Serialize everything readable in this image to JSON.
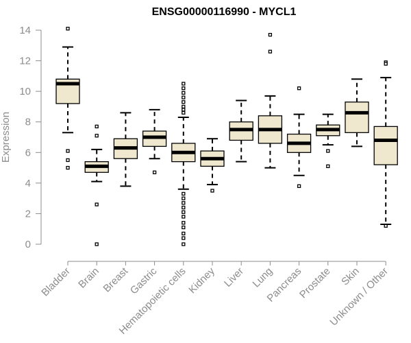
{
  "chart_data": {
    "type": "box",
    "title": "ENSG00000116990 - MYCL1",
    "xlabel": "",
    "ylabel": "Expression",
    "ylim": [
      0,
      14
    ],
    "yticks": [
      0,
      2,
      4,
      6,
      8,
      10,
      12,
      14
    ],
    "grid": false,
    "colors": {
      "box_fill": "#efe8cf",
      "box_stroke": "#000000",
      "axis": "#8c8c8c",
      "text": "#8c8c8c"
    },
    "categories": [
      "Bladder",
      "Brain",
      "Breast",
      "Gastric",
      "Hematopoietic cells",
      "Kidney",
      "Liver",
      "Lung",
      "Pancreas",
      "Prostate",
      "Skin",
      "Unknown / Other"
    ],
    "series": [
      {
        "name": "Bladder",
        "q1": 9.2,
        "median": 10.5,
        "q3": 10.8,
        "whisker_low": 7.3,
        "whisker_high": 12.9,
        "outliers": [
          14.1,
          6.1,
          5.5,
          5.0
        ]
      },
      {
        "name": "Brain",
        "q1": 4.7,
        "median": 5.1,
        "q3": 5.4,
        "whisker_low": 4.1,
        "whisker_high": 6.2,
        "outliers": [
          7.7,
          7.1,
          2.6,
          0.0
        ]
      },
      {
        "name": "Breast",
        "q1": 5.6,
        "median": 6.3,
        "q3": 6.9,
        "whisker_low": 3.8,
        "whisker_high": 8.6,
        "outliers": []
      },
      {
        "name": "Gastric",
        "q1": 6.4,
        "median": 7.0,
        "q3": 7.4,
        "whisker_low": 5.6,
        "whisker_high": 8.8,
        "outliers": [
          4.7
        ]
      },
      {
        "name": "Hematopoietic cells",
        "q1": 5.4,
        "median": 6.0,
        "q3": 6.6,
        "whisker_low": 3.6,
        "whisker_high": 8.3,
        "outliers": [
          10.5,
          10.2,
          9.9,
          9.6,
          9.3,
          9.0,
          8.8,
          8.6,
          3.3,
          3.0,
          2.7,
          2.4,
          2.1,
          1.8,
          1.4,
          1.1,
          0.7,
          0.4,
          0.0
        ]
      },
      {
        "name": "Kidney",
        "q1": 5.1,
        "median": 5.6,
        "q3": 6.1,
        "whisker_low": 3.9,
        "whisker_high": 6.9,
        "outliers": [
          3.5
        ]
      },
      {
        "name": "Liver",
        "q1": 6.8,
        "median": 7.5,
        "q3": 8.0,
        "whisker_low": 5.4,
        "whisker_high": 9.4,
        "outliers": []
      },
      {
        "name": "Lung",
        "q1": 6.6,
        "median": 7.5,
        "q3": 8.4,
        "whisker_low": 5.0,
        "whisker_high": 9.7,
        "outliers": [
          13.7,
          12.6
        ]
      },
      {
        "name": "Pancreas",
        "q1": 6.0,
        "median": 6.6,
        "q3": 7.2,
        "whisker_low": 4.5,
        "whisker_high": 8.5,
        "outliers": [
          10.2,
          3.8
        ]
      },
      {
        "name": "Prostate",
        "q1": 7.1,
        "median": 7.5,
        "q3": 7.8,
        "whisker_low": 6.5,
        "whisker_high": 8.5,
        "outliers": [
          6.1,
          5.1
        ]
      },
      {
        "name": "Skin",
        "q1": 7.3,
        "median": 8.6,
        "q3": 9.3,
        "whisker_low": 6.4,
        "whisker_high": 10.8,
        "outliers": []
      },
      {
        "name": "Unknown / Other",
        "q1": 5.2,
        "median": 6.8,
        "q3": 7.7,
        "whisker_low": 1.3,
        "whisker_high": 10.9,
        "outliers": [
          11.9,
          11.8,
          1.2
        ]
      }
    ]
  }
}
